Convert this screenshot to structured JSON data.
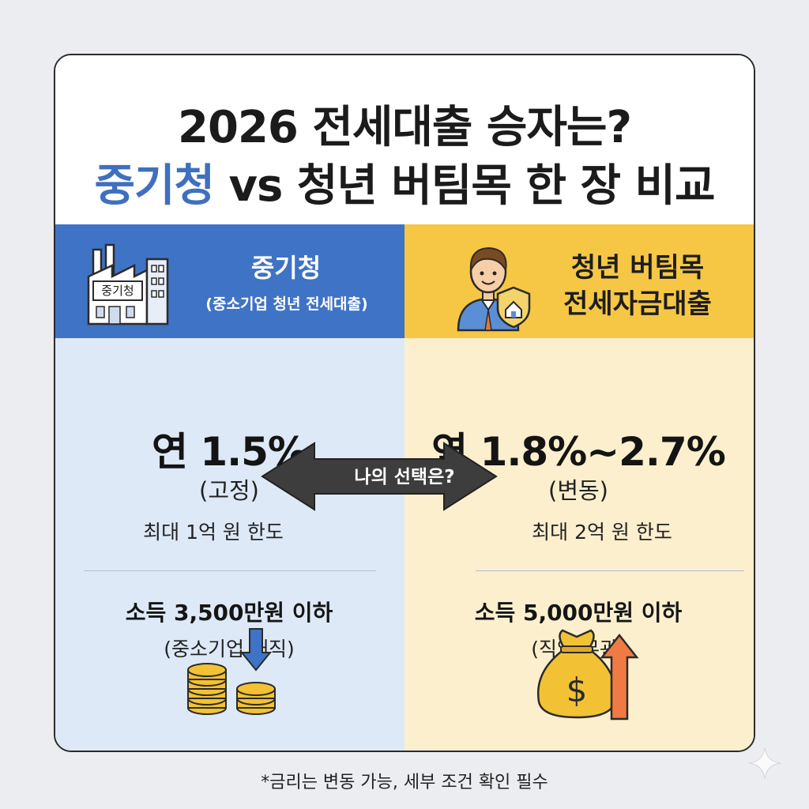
{
  "title": {
    "line1": "2026 전세대출 승자는?",
    "line2_accent": "중기청",
    "line2_rest": " vs 청년 버팀목 한 장 비교"
  },
  "left": {
    "name": "중기청",
    "subtitle": "(중소기업 청년 전세대출)",
    "building_sign": "중기청",
    "rate": "연 1.5%",
    "rate_type": "(고정)",
    "limit": "최대 1억 원 한도",
    "income": "소득 3,500만원 이하",
    "income_note": "(중소기업 재직)",
    "color": "#3f73c5",
    "bg": "#dde9f7",
    "icon_top": "factory-icon",
    "icon_bottom": "coins-down-arrow-icon"
  },
  "right": {
    "name_line1": "청년 버팀목",
    "name_line2": "전세자금대출",
    "rate": "연 1.8%~2.7%",
    "rate_type": "(변동)",
    "limit": "최대 2억 원 한도",
    "income": "소득 5,000만원 이하",
    "income_note": "(직업 무관)",
    "color": "#f6c744",
    "bg": "#fbefcd",
    "icon_top": "person-shield-icon",
    "icon_bottom": "money-bag-up-arrow-icon"
  },
  "center_label": "나의 선택은?",
  "footnote": "*금리는 변동 가능, 세부 조건 확인 필수"
}
